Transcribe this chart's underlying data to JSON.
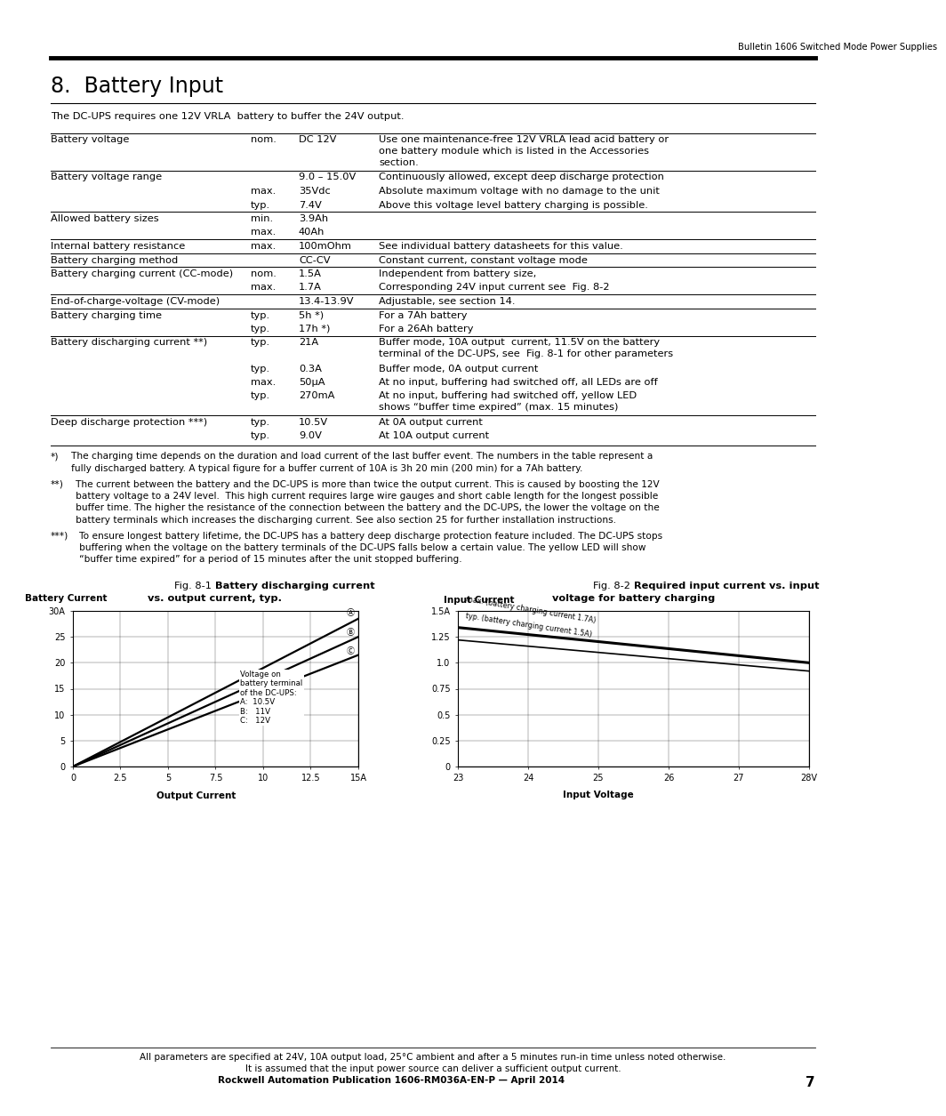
{
  "page_header": "Bulletin 1606 Switched Mode Power Supplies",
  "section_title": "8.  Battery Input",
  "intro_text": "The DC-UPS requires one 12V VRLA  battery to buffer the 24V output.",
  "table_rows": [
    {
      "label": "Battery voltage",
      "qual": "nom.",
      "value": "DC 12V",
      "description": "Use one maintenance-free 12V VRLA lead acid battery or\none battery module which is listed in the Accessories\nsection.",
      "nlines": 3
    },
    {
      "label": "Battery voltage range",
      "qual": "",
      "value": "9.0 – 15.0V",
      "description": "Continuously allowed, except deep discharge protection",
      "nlines": 1
    },
    {
      "label": "",
      "qual": "max.",
      "value": "35Vdc",
      "description": "Absolute maximum voltage with no damage to the unit",
      "nlines": 1
    },
    {
      "label": "",
      "qual": "typ.",
      "value": "7.4V",
      "description": "Above this voltage level battery charging is possible.",
      "nlines": 1
    },
    {
      "label": "Allowed battery sizes",
      "qual": "min.",
      "value": "3.9Ah",
      "description": "",
      "nlines": 1
    },
    {
      "label": "",
      "qual": "max.",
      "value": "40Ah",
      "description": "",
      "nlines": 1
    },
    {
      "label": "Internal battery resistance",
      "qual": "max.",
      "value": "100mOhm",
      "description": "See individual battery datasheets for this value.",
      "nlines": 1
    },
    {
      "label": "Battery charging method",
      "qual": "",
      "value": "CC-CV",
      "description": "Constant current, constant voltage mode",
      "nlines": 1
    },
    {
      "label": "Battery charging current (CC-mode)",
      "qual": "nom.",
      "value": "1.5A",
      "description": "Independent from battery size,",
      "nlines": 1
    },
    {
      "label": "",
      "qual": "max.",
      "value": "1.7A",
      "description": "Corresponding 24V input current see  Fig. 8-2",
      "nlines": 1
    },
    {
      "label": "End-of-charge-voltage (CV-mode)",
      "qual": "",
      "value": "13.4-13.9V",
      "description": "Adjustable, see section 14.",
      "nlines": 1
    },
    {
      "label": "Battery charging time",
      "qual": "typ.",
      "value": "5h *)",
      "description": "For a 7Ah battery",
      "nlines": 1
    },
    {
      "label": "",
      "qual": "typ.",
      "value": "17h *)",
      "description": "For a 26Ah battery",
      "nlines": 1
    },
    {
      "label": "Battery discharging current **)",
      "qual": "typ.",
      "value": "21A",
      "description": "Buffer mode, 10A output  current, 11.5V on the battery\nterminal of the DC-UPS, see  Fig. 8-1 for other parameters",
      "nlines": 2
    },
    {
      "label": "",
      "qual": "typ.",
      "value": "0.3A",
      "description": "Buffer mode, 0A output current",
      "nlines": 1
    },
    {
      "label": "",
      "qual": "max.",
      "value": "50μA",
      "description": "At no input, buffering had switched off, all LEDs are off",
      "nlines": 1
    },
    {
      "label": "",
      "qual": "typ.",
      "value": "270mA",
      "description": "At no input, buffering had switched off, yellow LED\nshows “buffer time expired” (max. 15 minutes)",
      "nlines": 2
    },
    {
      "label": "Deep discharge protection ***)",
      "qual": "typ.",
      "value": "10.5V",
      "description": "At 0A output current",
      "nlines": 1
    },
    {
      "label": "",
      "qual": "typ.",
      "value": "9.0V",
      "description": "At 10A output current",
      "nlines": 1
    }
  ],
  "separator_before": [
    1,
    4,
    6,
    7,
    8,
    10,
    11,
    13,
    17,
    19
  ],
  "footnote1_marker": "*)",
  "footnote1_lines": [
    "   The charging time depends on the duration and load current of the last buffer event. The numbers in the table represent a",
    "   fully discharged battery. A typical figure for a buffer current of 10A is 3h 20 min (200 min) for a 7Ah battery."
  ],
  "footnote2_marker": "**)",
  "footnote2_lines": [
    "   The current between the battery and the DC-UPS is more than twice the output current. This is caused by boosting the 12V",
    "   battery voltage to a 24V level.  This high current requires large wire gauges and short cable length for the longest possible",
    "   buffer time. The higher the resistance of the connection between the battery and the DC-UPS, the lower the voltage on the",
    "   battery terminals which increases the discharging current. See also section 25 for further installation instructions."
  ],
  "footnote3_marker": "***)",
  "footnote3_lines": [
    "   To ensure longest battery lifetime, the DC-UPS has a battery deep discharge protection feature included. The DC-UPS stops",
    "   buffering when the voltage on the battery terminals of the DC-UPS falls below a certain value. The yellow LED will show",
    "   “buffer time expired” for a period of 15 minutes after the unit stopped buffering."
  ],
  "footer_line1": "All parameters are specified at 24V, 10A output load, 25°C ambient and after a 5 minutes run-in time unless noted otherwise.",
  "footer_line2": "It is assumed that the input power source can deliver a sufficient output current.",
  "footer_line3": "Rockwell Automation Publication 1606-RM036A-EN-P — April 2014",
  "page_number": "7",
  "bg_color": "#ffffff"
}
